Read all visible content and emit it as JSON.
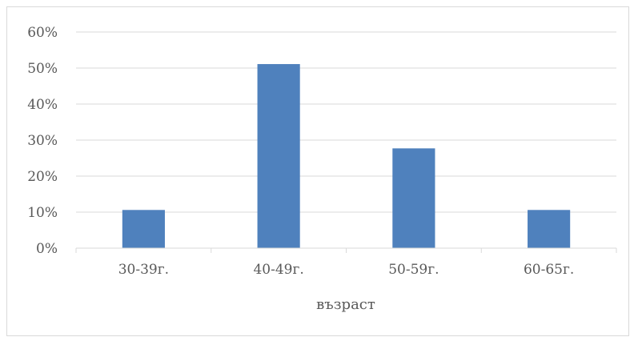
{
  "chart_data": {
    "type": "bar",
    "categories": [
      "30-39г.",
      "40-49г.",
      "50-59г.",
      "60-65г."
    ],
    "values": [
      0.106,
      0.511,
      0.277,
      0.106
    ],
    "xlabel": "възраст",
    "ylabel": "",
    "ylim": [
      0,
      0.6
    ],
    "yticks": [
      "0%",
      "10%",
      "20%",
      "30%",
      "40%",
      "50%",
      "60%"
    ],
    "grid": true,
    "legend": "none",
    "bar_color": "#4f81bd",
    "grid_color": "#d9d9d9"
  }
}
